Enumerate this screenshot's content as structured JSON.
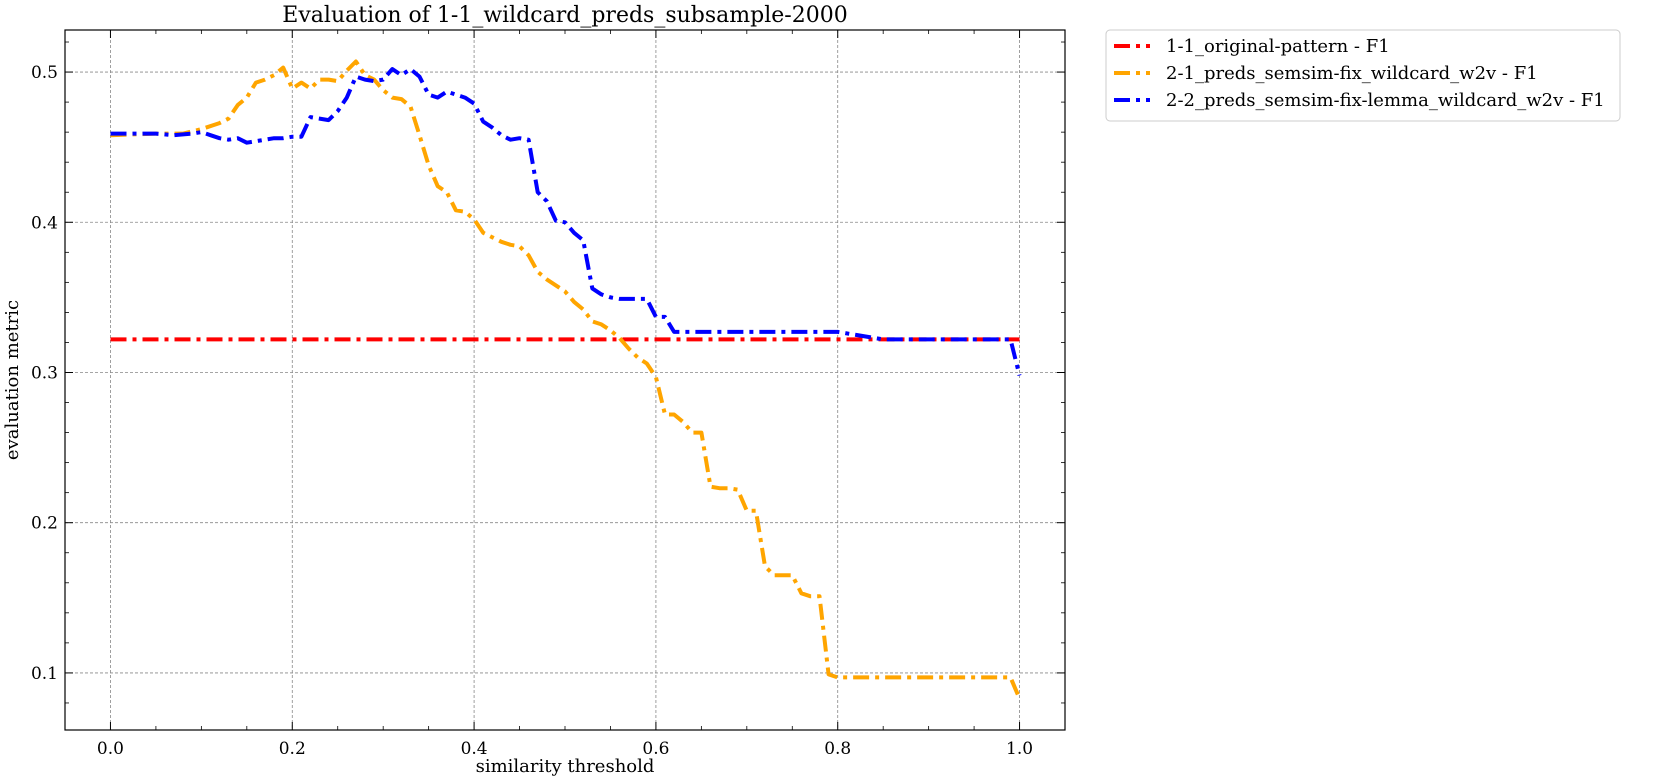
{
  "chart_data": {
    "type": "line",
    "title": "Evaluation of 1-1_wildcard_preds_subsample-2000",
    "xlabel": "similarity threshold",
    "ylabel": "evaluation metric",
    "xlim": [
      -0.05,
      1.05
    ],
    "ylim": [
      0.062,
      0.528
    ],
    "xticks": [
      0.0,
      0.2,
      0.4,
      0.6,
      0.8,
      1.0
    ],
    "xtick_labels": [
      "0.0",
      "0.2",
      "0.4",
      "0.6",
      "0.8",
      "1.0"
    ],
    "yticks": [
      0.1,
      0.2,
      0.3,
      0.4,
      0.5
    ],
    "ytick_labels": [
      "0.1",
      "0.2",
      "0.3",
      "0.4",
      "0.5"
    ],
    "grid": true,
    "legend_position": "outside-top-right",
    "series": [
      {
        "name": "1-1_original-pattern - F1",
        "color": "#ff0000",
        "x": [
          0.0,
          1.0
        ],
        "y": [
          0.322,
          0.322
        ]
      },
      {
        "name": "2-1_preds_semsim-fix_wildcard_w2v - F1",
        "color": "#ffa500",
        "x": [
          0.0,
          0.05,
          0.08,
          0.1,
          0.12,
          0.13,
          0.14,
          0.15,
          0.16,
          0.17,
          0.18,
          0.19,
          0.2,
          0.21,
          0.22,
          0.23,
          0.24,
          0.25,
          0.26,
          0.27,
          0.28,
          0.29,
          0.3,
          0.31,
          0.32,
          0.33,
          0.34,
          0.35,
          0.36,
          0.37,
          0.38,
          0.39,
          0.4,
          0.41,
          0.42,
          0.43,
          0.44,
          0.45,
          0.46,
          0.47,
          0.48,
          0.49,
          0.5,
          0.51,
          0.52,
          0.53,
          0.54,
          0.55,
          0.56,
          0.57,
          0.58,
          0.59,
          0.6,
          0.61,
          0.62,
          0.63,
          0.64,
          0.65,
          0.66,
          0.67,
          0.68,
          0.69,
          0.7,
          0.71,
          0.72,
          0.73,
          0.74,
          0.75,
          0.76,
          0.77,
          0.78,
          0.79,
          0.8,
          0.85,
          0.9,
          0.95,
          0.99,
          1.0
        ],
        "y": [
          0.458,
          0.459,
          0.459,
          0.462,
          0.466,
          0.469,
          0.478,
          0.483,
          0.493,
          0.495,
          0.498,
          0.503,
          0.489,
          0.493,
          0.489,
          0.495,
          0.495,
          0.494,
          0.501,
          0.507,
          0.498,
          0.495,
          0.488,
          0.483,
          0.482,
          0.477,
          0.458,
          0.438,
          0.424,
          0.42,
          0.408,
          0.407,
          0.402,
          0.393,
          0.39,
          0.387,
          0.385,
          0.384,
          0.378,
          0.367,
          0.362,
          0.358,
          0.354,
          0.347,
          0.342,
          0.334,
          0.332,
          0.328,
          0.323,
          0.316,
          0.31,
          0.306,
          0.297,
          0.272,
          0.272,
          0.267,
          0.26,
          0.26,
          0.224,
          0.223,
          0.223,
          0.222,
          0.208,
          0.208,
          0.171,
          0.165,
          0.165,
          0.165,
          0.153,
          0.151,
          0.151,
          0.099,
          0.097,
          0.097,
          0.097,
          0.097,
          0.097,
          0.083
        ]
      },
      {
        "name": "2-2_preds_semsim-fix-lemma_wildcard_w2v - F1",
        "color": "#0000ff",
        "x": [
          0.0,
          0.05,
          0.07,
          0.09,
          0.1,
          0.11,
          0.12,
          0.13,
          0.14,
          0.15,
          0.16,
          0.17,
          0.18,
          0.19,
          0.2,
          0.21,
          0.22,
          0.23,
          0.24,
          0.25,
          0.26,
          0.27,
          0.28,
          0.29,
          0.3,
          0.31,
          0.32,
          0.33,
          0.34,
          0.35,
          0.36,
          0.37,
          0.38,
          0.39,
          0.4,
          0.41,
          0.42,
          0.43,
          0.44,
          0.45,
          0.46,
          0.47,
          0.48,
          0.49,
          0.5,
          0.51,
          0.52,
          0.53,
          0.54,
          0.55,
          0.56,
          0.57,
          0.58,
          0.59,
          0.6,
          0.61,
          0.62,
          0.63,
          0.7,
          0.75,
          0.79,
          0.8,
          0.85,
          0.9,
          0.95,
          0.99,
          1.0
        ],
        "y": [
          0.459,
          0.459,
          0.458,
          0.459,
          0.46,
          0.458,
          0.456,
          0.455,
          0.456,
          0.453,
          0.454,
          0.455,
          0.456,
          0.456,
          0.457,
          0.457,
          0.47,
          0.469,
          0.468,
          0.474,
          0.483,
          0.497,
          0.495,
          0.494,
          0.495,
          0.502,
          0.498,
          0.502,
          0.497,
          0.485,
          0.483,
          0.487,
          0.485,
          0.483,
          0.479,
          0.467,
          0.463,
          0.458,
          0.455,
          0.456,
          0.455,
          0.42,
          0.414,
          0.401,
          0.4,
          0.393,
          0.388,
          0.356,
          0.352,
          0.35,
          0.349,
          0.349,
          0.349,
          0.349,
          0.337,
          0.337,
          0.327,
          0.327,
          0.327,
          0.327,
          0.327,
          0.327,
          0.322,
          0.322,
          0.322,
          0.322,
          0.298
        ]
      }
    ]
  }
}
